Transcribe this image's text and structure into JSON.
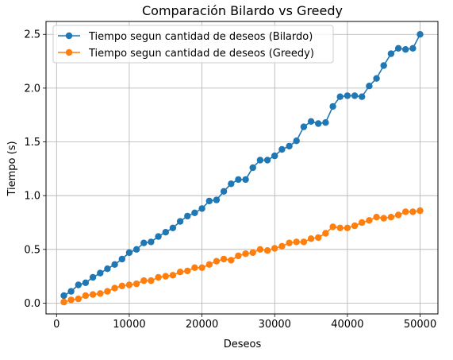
{
  "chart_data": {
    "type": "line",
    "title": "Comparación Bilardo vs Greedy",
    "xlabel": "Deseos",
    "ylabel": "Tiempo (s)",
    "xlim": [
      -1450,
      52450
    ],
    "ylim": [
      -0.1,
      2.62
    ],
    "xticks": [
      0,
      10000,
      20000,
      30000,
      40000,
      50000
    ],
    "xtick_labels": [
      "0",
      "10000",
      "20000",
      "30000",
      "40000",
      "50000"
    ],
    "yticks": [
      0.0,
      0.5,
      1.0,
      1.5,
      2.0,
      2.5
    ],
    "ytick_labels": [
      "0.0",
      "0.5",
      "1.0",
      "1.5",
      "2.0",
      "2.5"
    ],
    "grid": true,
    "legend_position": "top-left",
    "x": [
      1000,
      2000,
      3000,
      4000,
      5000,
      6000,
      7000,
      8000,
      9000,
      10000,
      11000,
      12000,
      13000,
      14000,
      15000,
      16000,
      17000,
      18000,
      19000,
      20000,
      21000,
      22000,
      23000,
      24000,
      25000,
      26000,
      27000,
      28000,
      29000,
      30000,
      31000,
      32000,
      33000,
      34000,
      35000,
      36000,
      37000,
      38000,
      39000,
      40000,
      41000,
      42000,
      43000,
      44000,
      45000,
      46000,
      47000,
      48000,
      49000,
      50000
    ],
    "series": [
      {
        "name": "Tiempo segun cantidad de deseos (Bilardo)",
        "color": "#1f77b4",
        "values": [
          0.07,
          0.11,
          0.17,
          0.19,
          0.24,
          0.28,
          0.32,
          0.36,
          0.41,
          0.47,
          0.5,
          0.56,
          0.57,
          0.62,
          0.66,
          0.7,
          0.76,
          0.81,
          0.84,
          0.88,
          0.95,
          0.96,
          1.04,
          1.11,
          1.15,
          1.15,
          1.26,
          1.33,
          1.33,
          1.37,
          1.43,
          1.46,
          1.51,
          1.64,
          1.69,
          1.67,
          1.68,
          1.83,
          1.92,
          1.93,
          1.93,
          1.92,
          2.02,
          2.09,
          2.21,
          2.32,
          2.37,
          2.36,
          2.37,
          2.5
        ]
      },
      {
        "name": "Tiempo segun cantidad de deseos (Greedy)",
        "color": "#ff7f0e",
        "values": [
          0.01,
          0.03,
          0.04,
          0.07,
          0.08,
          0.09,
          0.11,
          0.14,
          0.16,
          0.17,
          0.18,
          0.21,
          0.21,
          0.24,
          0.25,
          0.26,
          0.29,
          0.3,
          0.33,
          0.33,
          0.36,
          0.39,
          0.41,
          0.4,
          0.44,
          0.46,
          0.47,
          0.5,
          0.49,
          0.51,
          0.53,
          0.56,
          0.57,
          0.57,
          0.6,
          0.61,
          0.65,
          0.71,
          0.7,
          0.7,
          0.72,
          0.75,
          0.77,
          0.8,
          0.79,
          0.8,
          0.82,
          0.85,
          0.85,
          0.86
        ]
      }
    ]
  }
}
